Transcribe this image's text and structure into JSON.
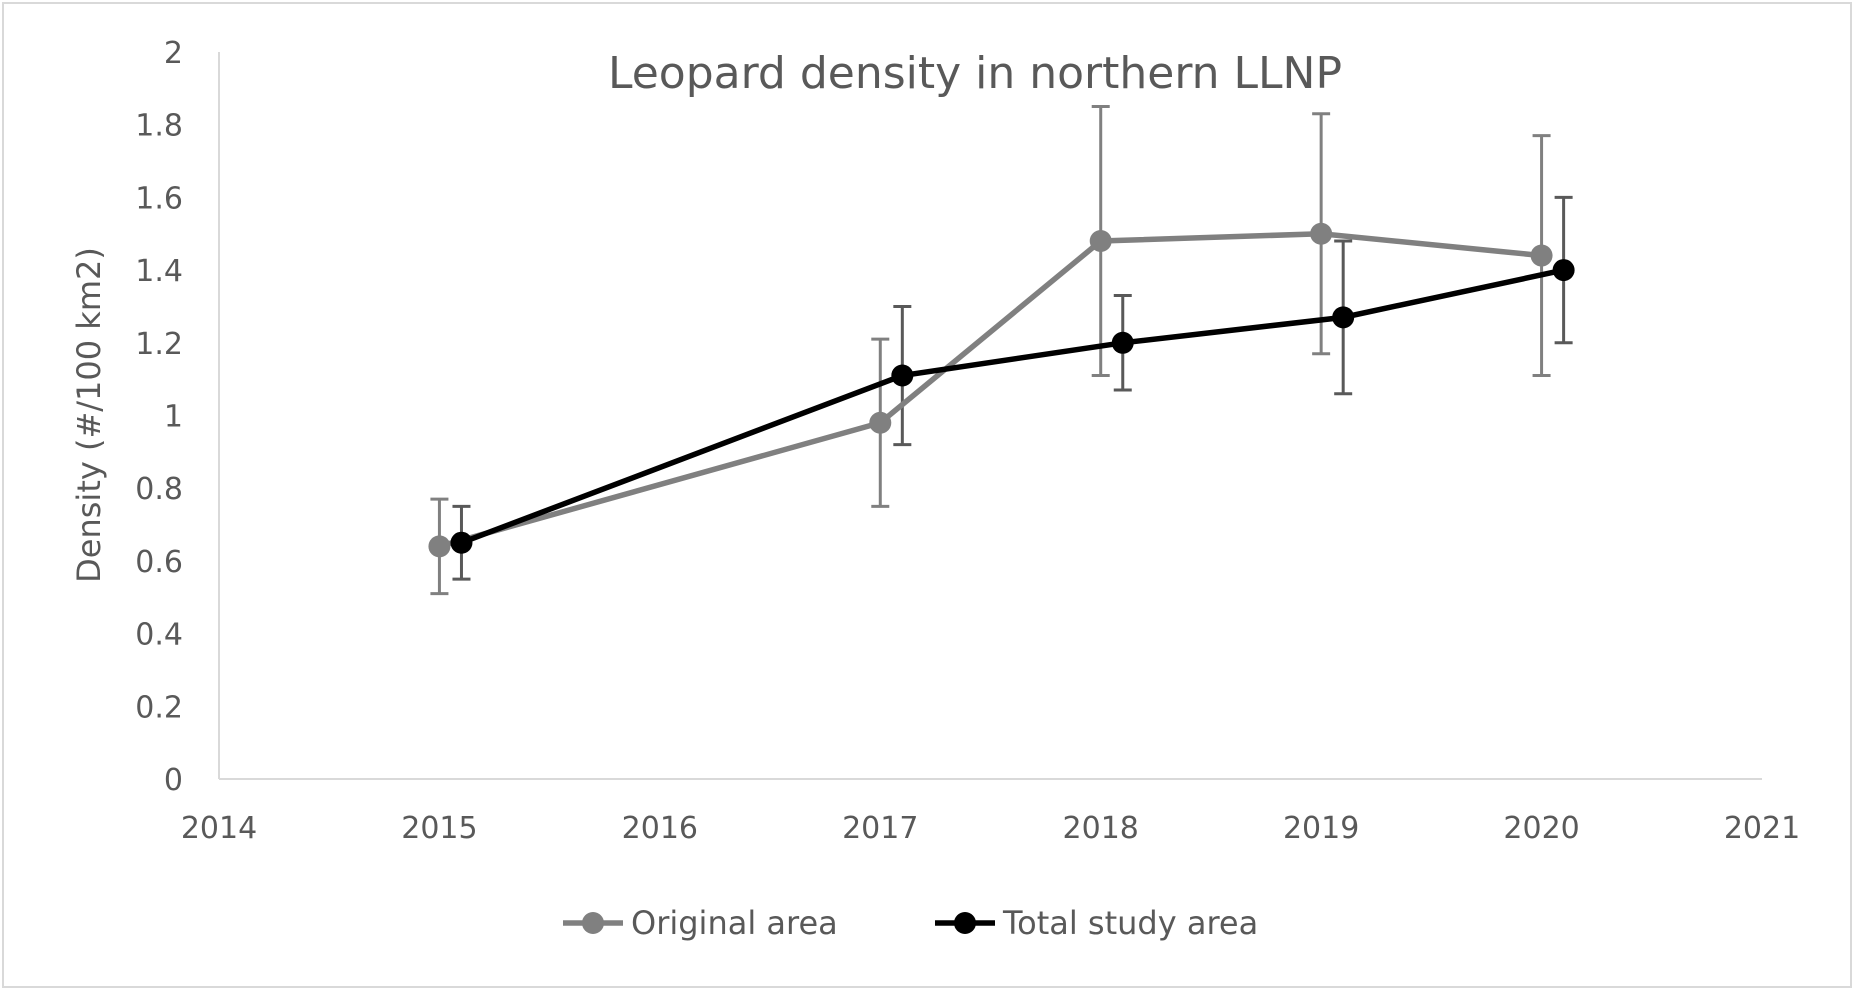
{
  "chart_data": {
    "type": "line",
    "title": "Leopard density in northern LLNP",
    "xlabel": "",
    "ylabel": "Density (#/100 km2)",
    "xlim": [
      2014,
      2021
    ],
    "ylim": [
      0,
      2
    ],
    "xticks": [
      "2014",
      "2015",
      "2016",
      "2017",
      "2018",
      "2019",
      "2020",
      "2021"
    ],
    "yticks": [
      "0",
      "0.2",
      "0.4",
      "0.6",
      "0.8",
      "1",
      "1.2",
      "1.4",
      "1.6",
      "1.8",
      "2"
    ],
    "grid": false,
    "legend_position": "bottom",
    "series": [
      {
        "name": "Original area",
        "color": "#808080",
        "x": [
          2015,
          2017,
          2018,
          2019,
          2020
        ],
        "y": [
          0.64,
          0.98,
          1.48,
          1.5,
          1.44
        ],
        "err_low": [
          0.51,
          0.75,
          1.11,
          1.17,
          1.11
        ],
        "err_high": [
          0.77,
          1.21,
          1.85,
          1.83,
          1.77
        ]
      },
      {
        "name": "Total study area",
        "color": "#000000",
        "x": [
          2015.1,
          2017.1,
          2018.1,
          2019.1,
          2020.1
        ],
        "y": [
          0.65,
          1.11,
          1.2,
          1.27,
          1.4
        ],
        "err_low": [
          0.55,
          0.92,
          1.07,
          1.06,
          1.2
        ],
        "err_high": [
          0.75,
          1.3,
          1.33,
          1.48,
          1.6
        ]
      }
    ]
  }
}
